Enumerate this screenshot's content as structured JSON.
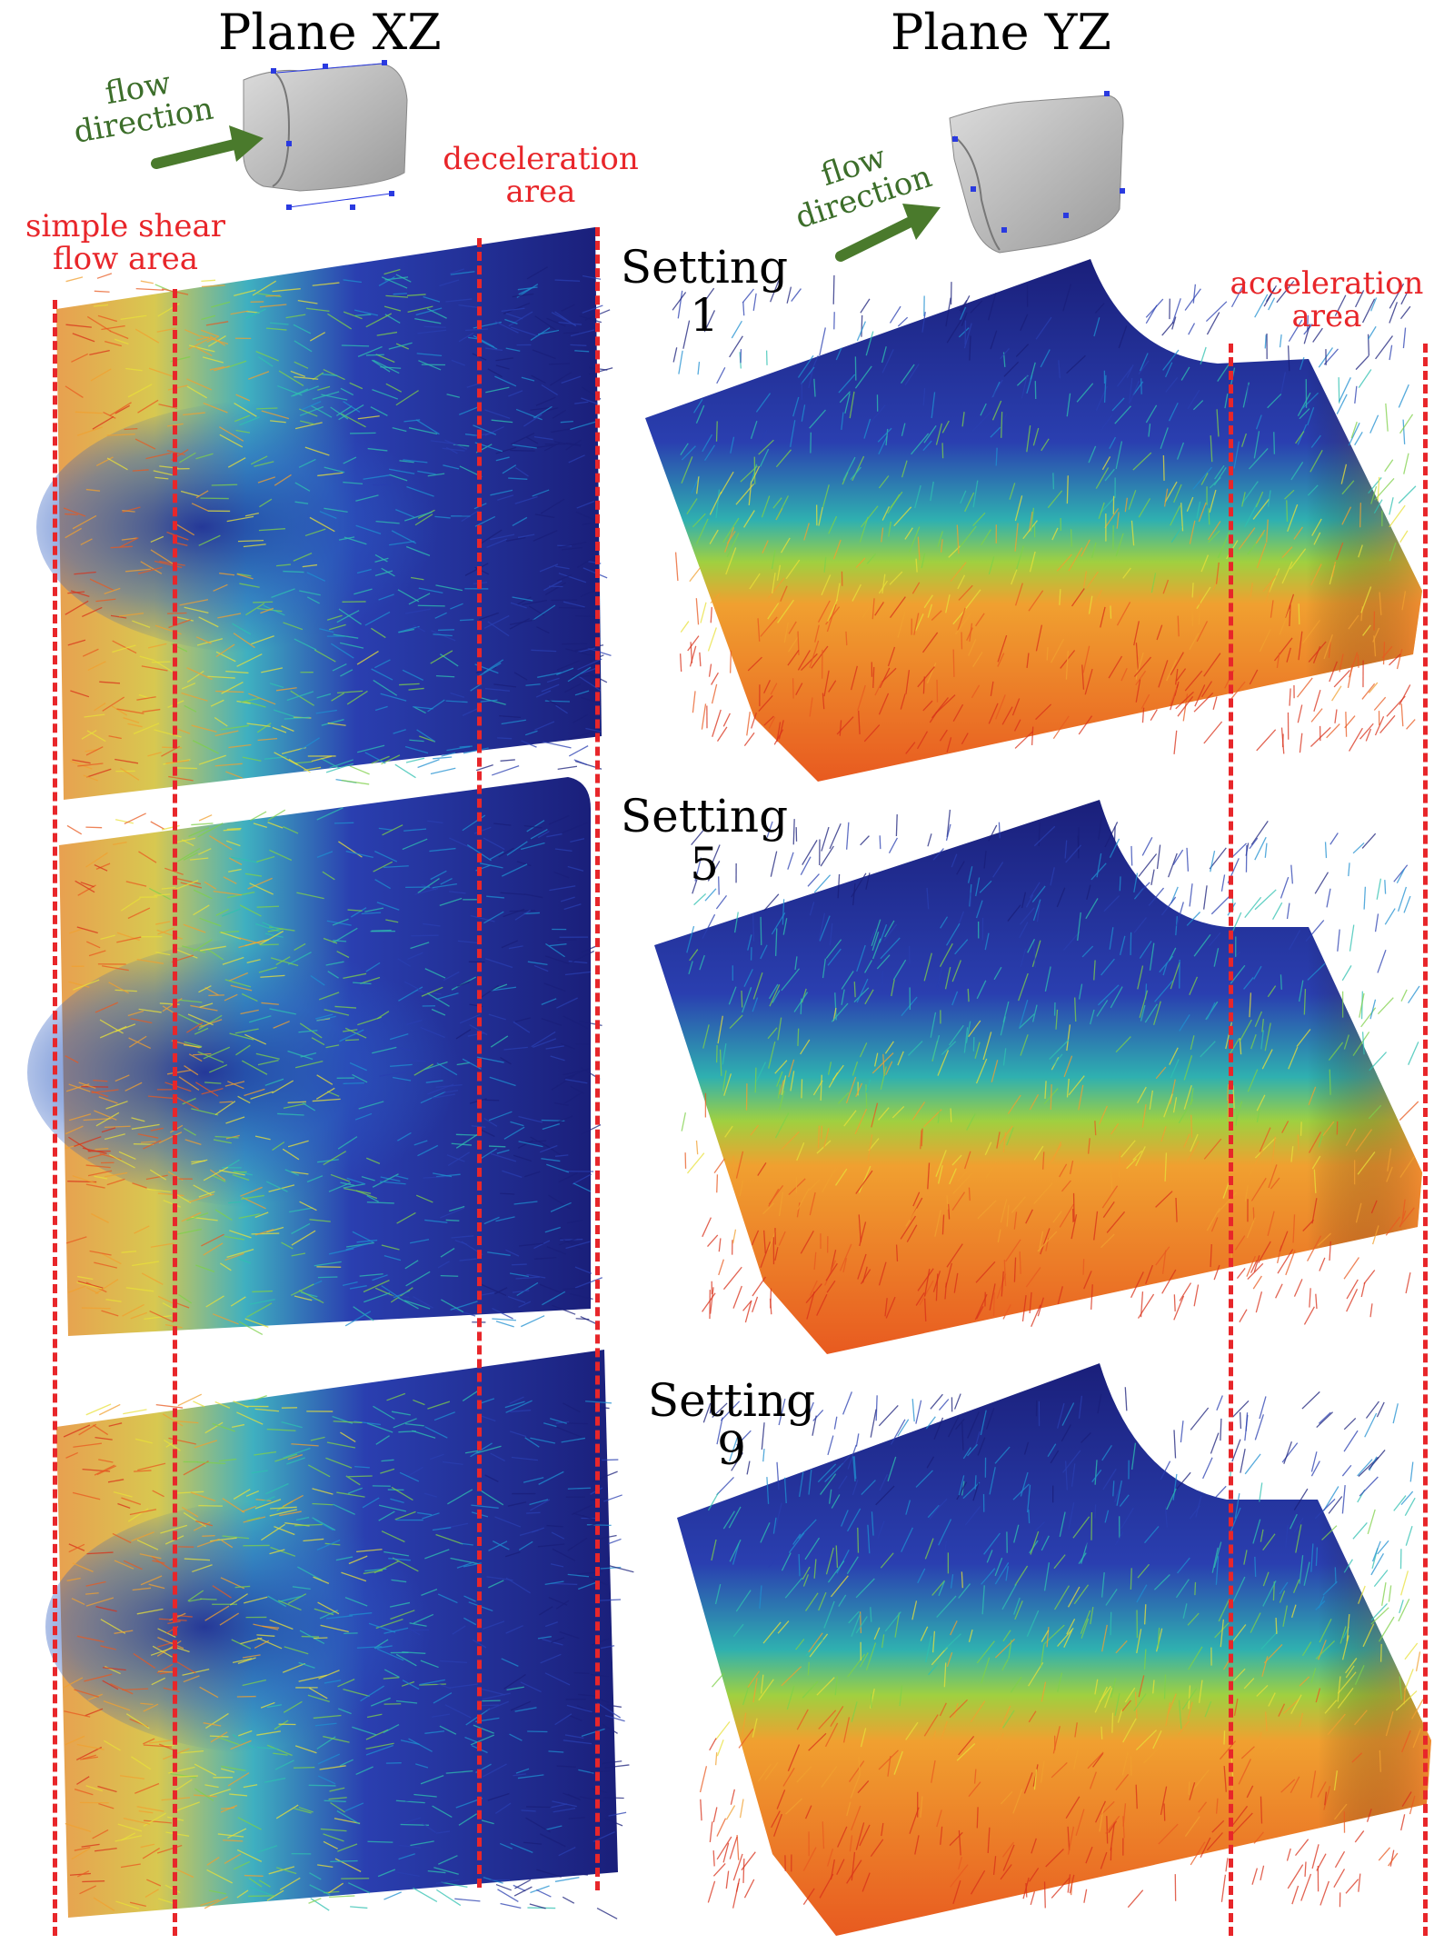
{
  "headers": {
    "plane_xz": "Plane XZ",
    "plane_yz": "Plane YZ"
  },
  "annotations": {
    "flow_direction_left": [
      "flow",
      "direction"
    ],
    "flow_direction_right": [
      "flow",
      "direction"
    ],
    "deceleration_area": [
      "deceleration",
      "area"
    ],
    "acceleration_area": [
      "acceleration",
      "area"
    ],
    "simple_shear_flow_area": [
      "simple shear",
      "flow area"
    ]
  },
  "settings": [
    {
      "label": "Setting",
      "number": "1"
    },
    {
      "label": "Setting",
      "number": "5"
    },
    {
      "label": "Setting",
      "number": "9"
    }
  ],
  "colors": {
    "annotation_red": "#e8262a",
    "arrow_green": "#4a7a2c",
    "fiber_palette": [
      "#1a1f7a",
      "#2a3fb0",
      "#1f8fd0",
      "#2fc0b0",
      "#7fd04a",
      "#e8e03a",
      "#f0a030",
      "#e85a20",
      "#d8301a"
    ]
  }
}
